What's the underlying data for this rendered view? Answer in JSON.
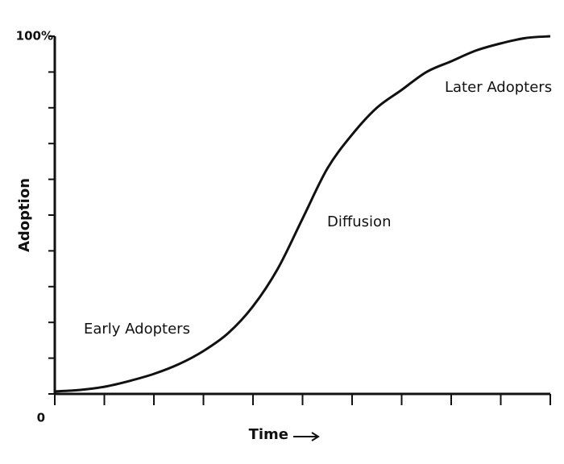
{
  "chart_data": {
    "type": "line",
    "x": [
      0,
      0.5,
      1,
      1.5,
      2,
      2.5,
      3,
      3.5,
      4,
      4.5,
      5,
      5.5,
      6,
      6.5,
      7,
      7.5,
      8,
      8.5,
      9,
      9.5,
      10
    ],
    "values": [
      0.7,
      1.1,
      2,
      3.6,
      5.6,
      8.3,
      12,
      17,
      24.5,
      35,
      49,
      63,
      72.5,
      80,
      85,
      90,
      93,
      96,
      98,
      99.5,
      100
    ],
    "color": "#111111",
    "xlim": [
      0,
      10
    ],
    "xminorticks": [
      0,
      1,
      2,
      3,
      4,
      5,
      6,
      7,
      8,
      9,
      10
    ],
    "ylim": [
      0,
      100
    ],
    "yticks": [
      0,
      {
        "value": 100,
        "label": "100%"
      }
    ],
    "yminorticks": [
      10,
      20,
      30,
      40,
      50,
      60,
      70,
      80,
      90
    ],
    "xlabel": "Time",
    "ylabel": "Adoption",
    "annotations": [
      "Early Adopters",
      "Diffusion",
      "Later Adopters"
    ]
  }
}
